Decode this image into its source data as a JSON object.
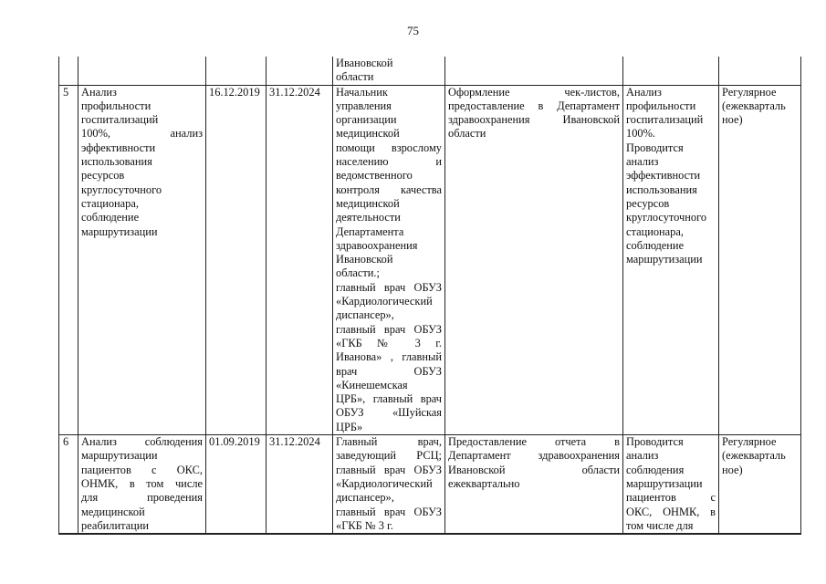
{
  "page_number": "75",
  "rows": [
    {
      "cells": [
        [],
        [],
        [],
        [],
        [
          "Ивановской",
          "области"
        ],
        [],
        [],
        []
      ]
    },
    {
      "cells": [
        [
          "5"
        ],
        [
          "Анализ",
          "профильности",
          "госпитализаций",
          "100%, анализ",
          "эффективности",
          "использования",
          "ресурсов",
          "круглосуточного",
          "стационара,",
          "соблюдение",
          "маршрутизации"
        ],
        [
          "16.12.2019"
        ],
        [
          "31.12.2024"
        ],
        [
          "Начальник",
          "управления",
          "организации",
          "медицинской",
          "помощи взрослому",
          "населению и",
          "ведомственного",
          "контроля качества",
          "медицинской",
          "деятельности",
          "Департамента",
          "здравоохранения",
          "Ивановской",
          "области.;",
          "главный врач ОБУЗ",
          "«Кардиологический",
          "диспансер»,",
          "главный врач ОБУЗ",
          "«ГКБ № 3 г.",
          "Иванова» , главный",
          "врач ОБУЗ",
          "«Кинешемская",
          "ЦРБ», главный врач",
          "ОБУЗ «Шуйская",
          "ЦРБ»"
        ],
        [
          "Оформление чек-листов,",
          "предоставление в Департамент",
          "здравоохранения Ивановской",
          "области"
        ],
        [
          "Анализ",
          "профильности",
          "госпитализаций",
          "100%.",
          "Проводится",
          "анализ",
          "эффективности",
          "использования",
          "ресурсов",
          "круглосуточного",
          "стационара,",
          "соблюдение",
          "маршрутизации"
        ],
        [
          "Регулярное",
          "(ежекварталь",
          "ное)"
        ]
      ]
    },
    {
      "cells": [
        [
          "6"
        ],
        [
          "Анализ соблюдения",
          "маршрутизации",
          "пациентов с ОКС,",
          "ОНМК, в том числе",
          "для проведения",
          "медицинской",
          "реабилитации"
        ],
        [
          "01.09.2019"
        ],
        [
          "31.12.2024"
        ],
        [
          "Главный врач,",
          "заведующий РСЦ;",
          "главный врач ОБУЗ",
          "«Кардиологический",
          "диспансер»,",
          "главный врач ОБУЗ",
          "«ГКБ № 3 г."
        ],
        [
          "Предоставление отчета в",
          "Департамент здравоохранения",
          "Ивановской области",
          "ежеквартально"
        ],
        [
          "Проводится",
          "анализ",
          "соблюдения",
          "маршрутизации",
          "пациентов с",
          "ОКС, ОНМК, в",
          "том числе для"
        ],
        [
          "Регулярное",
          "(ежекварталь",
          "ное)"
        ]
      ]
    }
  ]
}
